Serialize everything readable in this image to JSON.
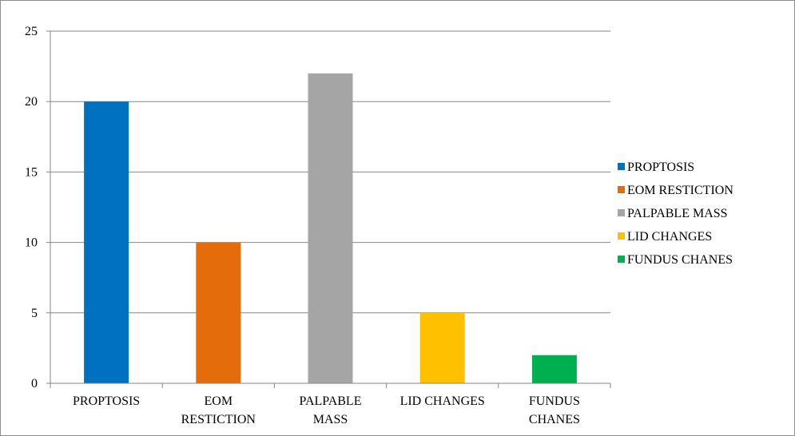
{
  "chart_data": {
    "type": "bar",
    "title": "",
    "xlabel": "",
    "ylabel": "",
    "categories": [
      "PROPTOSIS",
      "EOM RESTICTION",
      "PALPABLE MASS",
      "LID CHANGES",
      "FUNDUS CHANES"
    ],
    "category_label_lines": [
      [
        "PROPTOSIS"
      ],
      [
        "EOM",
        "RESTICTION"
      ],
      [
        "PALPABLE",
        "MASS"
      ],
      [
        "LID CHANGES"
      ],
      [
        "FUNDUS",
        "CHANES"
      ]
    ],
    "values": [
      20,
      10,
      22,
      5,
      2
    ],
    "colors": [
      "#0070c0",
      "#e46c0a",
      "#a5a5a5",
      "#ffc000",
      "#00b050"
    ],
    "ylim": [
      0,
      25
    ],
    "yticks": [
      0,
      5,
      10,
      15,
      20,
      25
    ],
    "grid": true,
    "legend_position": "right",
    "legend": [
      "PROPTOSIS",
      "EOM RESTICTION",
      "PALPABLE MASS",
      "LID CHANGES",
      "FUNDUS CHANES"
    ],
    "gridline_color": "#868686",
    "axis_color": "#868686"
  }
}
